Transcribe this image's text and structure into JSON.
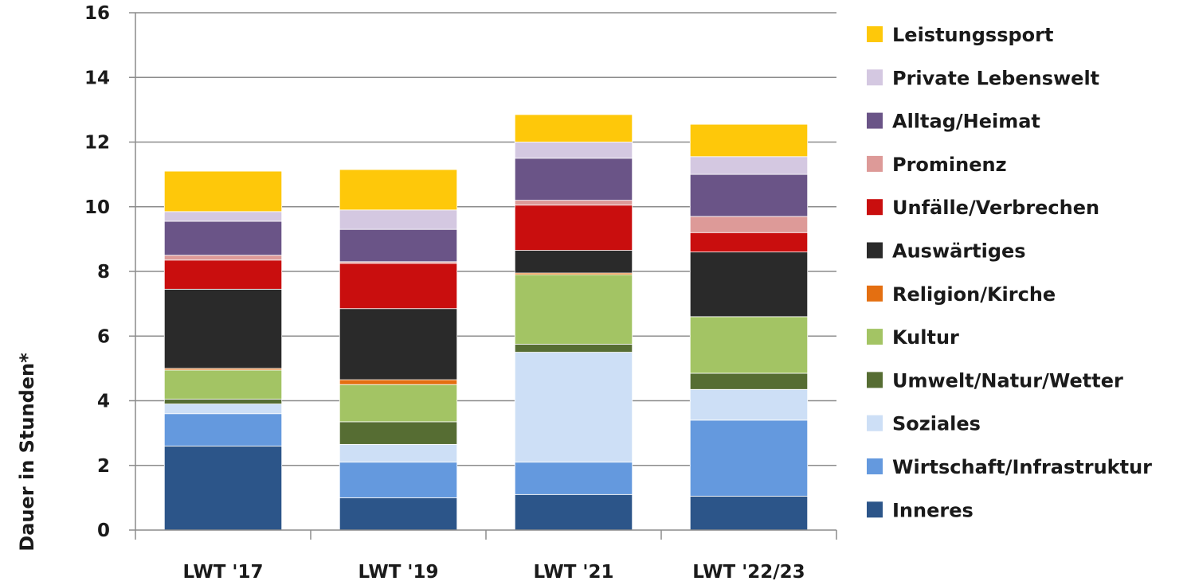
{
  "chart_data": {
    "type": "bar",
    "stacked": true,
    "title": "",
    "xlabel": "",
    "ylabel": "Dauer in Stunden*",
    "ylim": [
      0,
      16
    ],
    "yticks": [
      "0",
      "2",
      "4",
      "6",
      "8",
      "10",
      "12",
      "14",
      "16"
    ],
    "grid": true,
    "legend_position": "right",
    "categories": [
      "LWT '17",
      "LWT '19",
      "LWT '21",
      "LWT '22/23"
    ],
    "series": [
      {
        "name": "Inneres",
        "color": "#2c5589",
        "values": [
          2.6,
          1.0,
          1.1,
          1.05
        ]
      },
      {
        "name": "Wirtschaft/Infrastruktur",
        "color": "#6499de",
        "values": [
          1.0,
          1.1,
          1.0,
          2.35
        ]
      },
      {
        "name": "Soziales",
        "color": "#cddff6",
        "values": [
          0.3,
          0.55,
          3.4,
          0.95
        ]
      },
      {
        "name": "Umwelt/Natur/Wetter",
        "color": "#566d33",
        "values": [
          0.15,
          0.7,
          0.25,
          0.5
        ]
      },
      {
        "name": "Kultur",
        "color": "#a3c464",
        "values": [
          0.9,
          1.15,
          2.15,
          1.75
        ]
      },
      {
        "name": "Religion/Kirche",
        "color": "#e46f11",
        "values": [
          0.05,
          0.15,
          0.05,
          0.0
        ]
      },
      {
        "name": "Auswärtiges",
        "color": "#2a2a2a",
        "values": [
          2.45,
          2.2,
          0.7,
          2.0
        ]
      },
      {
        "name": "Unfälle/Verbrechen",
        "color": "#c90e0e",
        "values": [
          0.9,
          1.4,
          1.4,
          0.6
        ]
      },
      {
        "name": "Prominenz",
        "color": "#dd9a98",
        "values": [
          0.15,
          0.05,
          0.15,
          0.5
        ]
      },
      {
        "name": "Alltag/Heimat",
        "color": "#6a5487",
        "values": [
          1.05,
          1.0,
          1.3,
          1.3
        ]
      },
      {
        "name": "Private Lebenswelt",
        "color": "#d4c8e1",
        "values": [
          0.3,
          0.6,
          0.5,
          0.55
        ]
      },
      {
        "name": "Leistungssport",
        "color": "#fec80a",
        "values": [
          1.25,
          1.25,
          0.85,
          1.0
        ]
      }
    ]
  }
}
